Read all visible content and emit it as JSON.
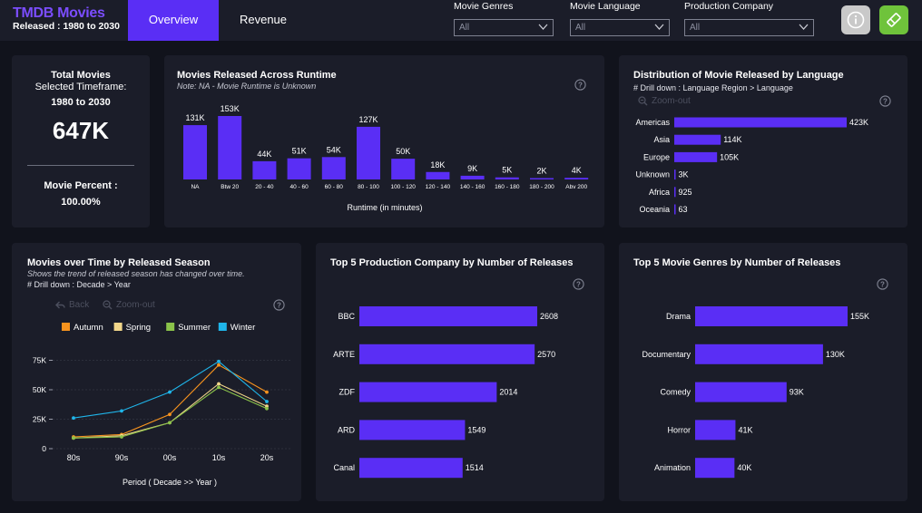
{
  "header": {
    "title": "TMDB Movies",
    "subtitle": "Released : 1980 to 2030",
    "tabs": [
      {
        "label": "Overview",
        "active": true
      },
      {
        "label": "Revenue",
        "active": false
      }
    ],
    "filters": [
      {
        "label": "Movie Genres",
        "value": "All"
      },
      {
        "label": "Movie Language",
        "value": "All"
      },
      {
        "label": "Production Company",
        "value": "All"
      }
    ],
    "buttons": {
      "info": "info-icon",
      "clear": "eraser-icon"
    },
    "colors": {
      "accent": "#5a2ef5",
      "brand": "#7b4dff",
      "clear_button": "#6fc33b",
      "info_button": "#c9c9c9"
    }
  },
  "kpi": {
    "total_label": "Total Movies",
    "timeframe_label": "Selected Timeframe:",
    "timeframe_value": "1980 to 2030",
    "total_value": "647K",
    "percent_label": "Movie Percent :",
    "percent_value": "100.00%"
  },
  "runtime_card": {
    "title": "Movies Released Across Runtime",
    "note": "Note: NA - Movie Runtime is Unknown"
  },
  "language_card": {
    "title": "Distribution of Movie Released by Language",
    "drill": "# Drill down : Language Region > Language",
    "zoom_label": "Zoom-out"
  },
  "season_card": {
    "title": "Movies over Time by Released Season",
    "note": "Shows the trend of released season has changed over time.",
    "drill": "# Drill down : Decade > Year",
    "back_label": "Back",
    "zoom_label": "Zoom-out"
  },
  "company_card": {
    "title": "Top 5 Production Company by Number of Releases"
  },
  "genre_card": {
    "title": "Top 5 Movie Genres by Number of Releases"
  },
  "chart_data": [
    {
      "id": "runtime",
      "type": "bar",
      "categories": [
        "NA",
        "Btw 20",
        "20 - 40",
        "40 - 60",
        "60 - 80",
        "80 - 100",
        "100 - 120",
        "120 - 140",
        "140 - 160",
        "160 - 180",
        "180 - 200",
        "Abv 200"
      ],
      "values": [
        131,
        153,
        44,
        51,
        54,
        127,
        50,
        18,
        9,
        5,
        2,
        4
      ],
      "labels": [
        "131K",
        "153K",
        "44K",
        "51K",
        "54K",
        "127K",
        "50K",
        "18K",
        "9K",
        "5K",
        "2K",
        "4K"
      ],
      "xlabel": "Runtime (in minutes)",
      "color": "#5a2ef5"
    },
    {
      "id": "language",
      "type": "bar",
      "orientation": "horizontal",
      "categories": [
        "Americas",
        "Asia",
        "Europe",
        "Unknown",
        "Africa",
        "Oceania"
      ],
      "values": [
        423,
        114,
        105,
        3,
        0.925,
        0.063
      ],
      "labels": [
        "423K",
        "114K",
        "105K",
        "3K",
        "925",
        "63"
      ],
      "color": "#5a2ef5"
    },
    {
      "id": "season",
      "type": "line",
      "x": [
        "80s",
        "90s",
        "00s",
        "10s",
        "20s"
      ],
      "ylim": [
        0,
        80000
      ],
      "yticks": [
        "0",
        "25K",
        "50K",
        "75K"
      ],
      "xlabel": "Period ( Decade >> Year )",
      "series": [
        {
          "name": "Autumn",
          "color": "#f7931e",
          "values": [
            10000,
            12000,
            29000,
            71000,
            48000
          ]
        },
        {
          "name": "Spring",
          "color": "#f2d68a",
          "values": [
            9000,
            11000,
            22000,
            55000,
            36000
          ]
        },
        {
          "name": "Summer",
          "color": "#8bc34a",
          "values": [
            9000,
            10000,
            22000,
            52000,
            34000
          ]
        },
        {
          "name": "Winter",
          "color": "#1fb5ea",
          "values": [
            26000,
            32000,
            48000,
            74000,
            40000
          ]
        }
      ]
    },
    {
      "id": "company",
      "type": "bar",
      "orientation": "horizontal",
      "categories": [
        "BBC",
        "ARTE",
        "ZDF",
        "ARD",
        "Canal"
      ],
      "values": [
        2608,
        2570,
        2014,
        1549,
        1514
      ],
      "labels": [
        "2608",
        "2570",
        "2014",
        "1549",
        "1514"
      ],
      "color": "#5a2ef5"
    },
    {
      "id": "genre",
      "type": "bar",
      "orientation": "horizontal",
      "categories": [
        "Drama",
        "Documentary",
        "Comedy",
        "Horror",
        "Animation"
      ],
      "values": [
        155,
        130,
        93,
        41,
        40
      ],
      "labels": [
        "155K",
        "130K",
        "93K",
        "41K",
        "40K"
      ],
      "color": "#5a2ef5"
    }
  ]
}
